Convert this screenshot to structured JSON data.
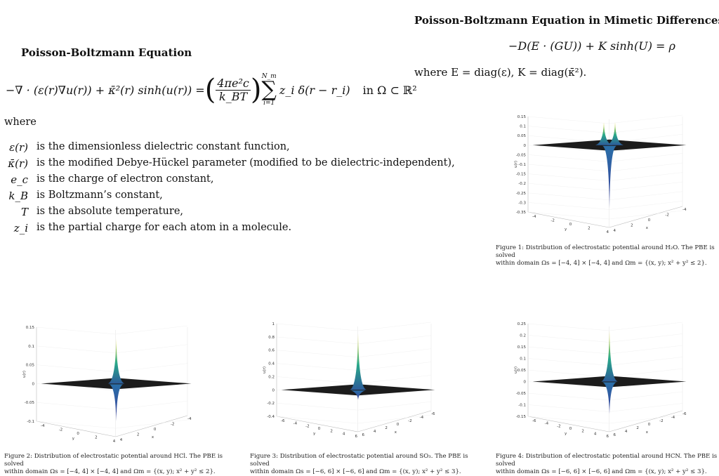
{
  "left": {
    "title": "Poisson-Boltzmann Equation",
    "equation": {
      "lhs": "−∇ · (ε(r)∇u(r)) + κ̄²(r) sinh(u(r)) =",
      "frac_num": "4πe²c",
      "frac_den": "k_BT",
      "sum_top": "N_m",
      "sum_bot": "i=1",
      "rhs": "z_i δ(r − r_i)",
      "domain": "in Ω ⊂ ℝ²"
    },
    "where": "where",
    "definitions": [
      {
        "symbol": "ε(r)",
        "text": "is the dimensionless dielectric constant function,"
      },
      {
        "symbol": "κ̄(r)",
        "text": "is the modified Debye-Hückel parameter (modified to be dielectric-independent),"
      },
      {
        "symbol": "e_c",
        "text": "is the charge of electron constant,"
      },
      {
        "symbol": "k_B",
        "text": "is Boltzmann’s constant,"
      },
      {
        "symbol": "T",
        "text": "is the absolute temperature,"
      },
      {
        "symbol": "z_i",
        "text": "is the partial charge for each atom in a molecule."
      }
    ]
  },
  "right": {
    "title": "Poisson-Boltzmann Equation in Mimetic Differences",
    "equation": "−D(E · (GU)) + K sinh(U) = ρ",
    "where_line": "where E = diag(ε), K = diag(κ̄²)."
  },
  "figures": [
    {
      "id": "fig1",
      "caption_line1": "Figure 1: Distribution of electrostatic potential around H₂O. The PBE is solved",
      "caption_line2": "within domain Ωs = [−4, 4] × [−4, 4] and Ωm = {(x, y); x² + y² ≤ 2}.",
      "z_ticks": [
        "0.15",
        "0.1",
        "0.05",
        "0",
        "-0.05",
        "-0.1",
        "-0.15",
        "-0.2",
        "-0.25",
        "-0.3",
        "-0.35"
      ],
      "x_ticks": [
        "4",
        "2",
        "0",
        "-2",
        "-4"
      ],
      "y_ticks": [
        "-4",
        "-2",
        "0",
        "2",
        "4"
      ],
      "zlabel": "u(r)",
      "xlabel": "x",
      "ylabel": "y",
      "peaks": [
        0.12,
        0.12
      ],
      "trough": -0.33
    },
    {
      "id": "fig2",
      "caption_line1": "Figure 2: Distribution of electrostatic potential around HCl. The PBE is solved",
      "caption_line2": "within domain Ωs = [−4, 4] × [−4, 4] and Ωm = {(x, y); x² + y² ≤ 2}.",
      "z_ticks": [
        "0.15",
        "0.1",
        "0.05",
        "0",
        "-0.05",
        "-0.1"
      ],
      "x_ticks": [
        "4",
        "2",
        "0",
        "-2",
        "-4"
      ],
      "y_ticks": [
        "-4",
        "-2",
        "0",
        "2",
        "4"
      ],
      "zlabel": "u(r)",
      "xlabel": "x",
      "ylabel": "y",
      "peaks": [
        0.12
      ],
      "trough": -0.1
    },
    {
      "id": "fig3",
      "caption_line1": "Figure 3: Distribution of electrostatic potential around SO₃. The PBE is solved",
      "caption_line2": "within domain Ωs = [−6, 6] × [−6, 6] and Ωm = {(x, y); x² + y² ≤ 3}.",
      "z_ticks": [
        "1",
        "0.8",
        "0.6",
        "0.4",
        "0.2",
        "0",
        "-0.2",
        "-0.4"
      ],
      "x_ticks": [
        "6",
        "4",
        "2",
        "0",
        "-2",
        "-4",
        "-6"
      ],
      "y_ticks": [
        "-6",
        "-4",
        "-2",
        "0",
        "2",
        "4",
        "6"
      ],
      "zlabel": "u(r)",
      "xlabel": "x",
      "ylabel": "y",
      "peaks": [
        0.85
      ],
      "trough": -0.15
    },
    {
      "id": "fig4",
      "caption_line1": "Figure 4: Distribution of electrostatic potential around HCN. The PBE is solved",
      "caption_line2": "within domain Ωs = [−6, 6] × [−6, 6] and Ωm = {(x, y); x² + y² ≤ 3}.",
      "z_ticks": [
        "0.25",
        "0.2",
        "0.15",
        "0.1",
        "0.05",
        "0",
        "-0.05",
        "-0.1",
        "-0.15"
      ],
      "x_ticks": [
        "6",
        "4",
        "2",
        "0",
        "-2",
        "-4",
        "-6"
      ],
      "y_ticks": [
        "-6",
        "-4",
        "-2",
        "0",
        "2",
        "4",
        "6"
      ],
      "zlabel": "u(r)",
      "xlabel": "x",
      "ylabel": "y",
      "peaks": [
        0.22
      ],
      "trough": -0.14
    }
  ]
}
